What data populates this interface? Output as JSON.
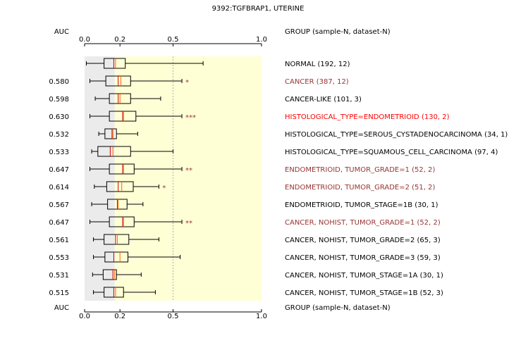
{
  "chart_data": {
    "type": "boxplot",
    "title": "9392:TGFBRAP1, UTERINE",
    "auc_header": "AUC",
    "group_header": "GROUP (sample-N, dataset-N)",
    "x_ticks": [
      {
        "value": 0.0,
        "label": "0.0"
      },
      {
        "value": 0.2,
        "label": "0.2"
      },
      {
        "value": 0.5,
        "label": "0.5"
      },
      {
        "value": 1.0,
        "label": "1.0"
      }
    ],
    "xlim": [
      0,
      1
    ],
    "reference_line": 0.5,
    "normal_band": [
      0,
      0.17
    ],
    "colors": {
      "plot_bg": "#ffffd6",
      "normal_band": "#ebebeb",
      "median": "#cc0000",
      "mean": "#ff6600",
      "black_label": "#000000",
      "dark_red_label": "#993333",
      "red_label": "#ff0000"
    },
    "rows": [
      {
        "group": "NORMAL (192, 12)",
        "auc": "",
        "sig": "",
        "label_color": "#000000",
        "whisker_lo": 0.01,
        "q1": 0.11,
        "median": 0.165,
        "mean": 0.175,
        "q3": 0.23,
        "whisker_hi": 0.67
      },
      {
        "group": "CANCER (387, 12)",
        "auc": "0.580",
        "sig": "*",
        "label_color": "#993333",
        "whisker_lo": 0.03,
        "q1": 0.12,
        "median": 0.19,
        "mean": 0.205,
        "q3": 0.26,
        "whisker_hi": 0.55
      },
      {
        "group": "CANCER-LIKE (101, 3)",
        "auc": "0.598",
        "sig": "",
        "label_color": "#000000",
        "whisker_lo": 0.06,
        "q1": 0.14,
        "median": 0.19,
        "mean": 0.2,
        "q3": 0.26,
        "whisker_hi": 0.43
      },
      {
        "group": "HISTOLOGICAL_TYPE=ENDOMETRIOID (130, 2)",
        "auc": "0.630",
        "sig": "***",
        "label_color": "#ff0000",
        "whisker_lo": 0.03,
        "q1": 0.14,
        "median": 0.215,
        "mean": 0.22,
        "q3": 0.29,
        "whisker_hi": 0.55
      },
      {
        "group": "HISTOLOGICAL_TYPE=SEROUS_CYSTADENOCARCINOMA (34, 1)",
        "auc": "0.532",
        "sig": "",
        "label_color": "#000000",
        "whisker_lo": 0.08,
        "q1": 0.115,
        "median": 0.155,
        "mean": 0.16,
        "q3": 0.18,
        "whisker_hi": 0.3
      },
      {
        "group": "HISTOLOGICAL_TYPE=SQUAMOUS_CELL_CARCINOMA (97, 4)",
        "auc": "0.533",
        "sig": "",
        "label_color": "#000000",
        "whisker_lo": 0.04,
        "q1": 0.075,
        "median": 0.145,
        "mean": 0.16,
        "q3": 0.26,
        "whisker_hi": 0.5
      },
      {
        "group": "ENDOMETRIOID, TUMOR_GRADE=1 (52, 2)",
        "auc": "0.647",
        "sig": "**",
        "label_color": "#993333",
        "whisker_lo": 0.03,
        "q1": 0.14,
        "median": 0.215,
        "mean": 0.22,
        "q3": 0.28,
        "whisker_hi": 0.55
      },
      {
        "group": "ENDOMETRIOID, TUMOR_GRADE=2 (51, 2)",
        "auc": "0.614",
        "sig": "*",
        "label_color": "#993333",
        "whisker_lo": 0.055,
        "q1": 0.125,
        "median": 0.19,
        "mean": 0.21,
        "q3": 0.275,
        "whisker_hi": 0.42
      },
      {
        "group": "ENDOMETRIOID, TUMOR_STAGE=1B (30, 1)",
        "auc": "0.567",
        "sig": "",
        "label_color": "#000000",
        "whisker_lo": 0.04,
        "q1": 0.13,
        "median": 0.185,
        "mean": 0.19,
        "q3": 0.24,
        "whisker_hi": 0.33
      },
      {
        "group": "CANCER, NOHIST, TUMOR_GRADE=1 (52, 2)",
        "auc": "0.647",
        "sig": "**",
        "label_color": "#993333",
        "whisker_lo": 0.03,
        "q1": 0.14,
        "median": 0.215,
        "mean": 0.22,
        "q3": 0.28,
        "whisker_hi": 0.55
      },
      {
        "group": "CANCER, NOHIST, TUMOR_GRADE=2 (65, 3)",
        "auc": "0.561",
        "sig": "",
        "label_color": "#000000",
        "whisker_lo": 0.05,
        "q1": 0.11,
        "median": 0.175,
        "mean": 0.185,
        "q3": 0.25,
        "whisker_hi": 0.42
      },
      {
        "group": "CANCER, NOHIST, TUMOR_GRADE=3 (59, 3)",
        "auc": "0.553",
        "sig": "",
        "label_color": "#000000",
        "whisker_lo": 0.05,
        "q1": 0.115,
        "median": 0.165,
        "mean": 0.2,
        "q3": 0.245,
        "whisker_hi": 0.54
      },
      {
        "group": "CANCER, NOHIST, TUMOR_STAGE=1A (30, 1)",
        "auc": "0.531",
        "sig": "",
        "label_color": "#000000",
        "whisker_lo": 0.045,
        "q1": 0.105,
        "median": 0.16,
        "mean": 0.17,
        "q3": 0.18,
        "whisker_hi": 0.32
      },
      {
        "group": "CANCER, NOHIST, TUMOR_STAGE=1B (52, 3)",
        "auc": "0.515",
        "sig": "",
        "label_color": "#000000",
        "whisker_lo": 0.05,
        "q1": 0.11,
        "median": 0.165,
        "mean": 0.175,
        "q3": 0.22,
        "whisker_hi": 0.4
      }
    ]
  }
}
